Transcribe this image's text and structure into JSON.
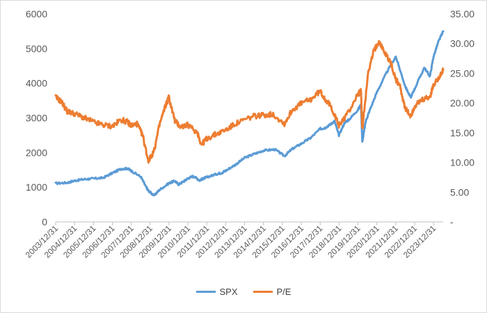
{
  "chart_data": {
    "type": "line",
    "x_tick_labels": [
      "2003/12/31",
      "2004/12/31",
      "2005/12/31",
      "2006/12/31",
      "2007/12/31",
      "2008/12/31",
      "2009/12/31",
      "2010/12/31",
      "2011/12/31",
      "2012/12/31",
      "2013/12/31",
      "2014/12/31",
      "2015/12/31",
      "2016/12/31",
      "2017/12/31",
      "2018/12/31",
      "2019/12/31",
      "2020/12/31",
      "2021/12/31",
      "2022/12/31",
      "2023/12/31"
    ],
    "y_left": {
      "min": 0,
      "max": 6000,
      "ticks": [
        "0",
        "1000",
        "2000",
        "3000",
        "4000",
        "5000",
        "6000"
      ]
    },
    "y_right": {
      "min": 0,
      "max": 35,
      "ticks": [
        "-",
        "5.00",
        "10.00",
        "15.00",
        "20.00",
        "25.00",
        "30.00",
        "35.00"
      ]
    },
    "grid": false,
    "legend_position": "bottom",
    "series": [
      {
        "name": "SPX",
        "axis": "left",
        "color": "#5B9BD5",
        "x": [
          2003.99,
          2004.6,
          2005.0,
          2005.5,
          2006.0,
          2006.5,
          2007.0,
          2007.45,
          2007.8,
          2008.0,
          2008.5,
          2008.8,
          2008.9,
          2009.2,
          2009.5,
          2010.0,
          2010.3,
          2010.5,
          2010.8,
          2011.0,
          2011.3,
          2011.6,
          2011.8,
          2012.0,
          2012.5,
          2012.8,
          2013.0,
          2013.5,
          2014.0,
          2014.5,
          2015.0,
          2015.6,
          2016.1,
          2016.5,
          2017.0,
          2017.5,
          2018.0,
          2018.2,
          2018.5,
          2018.75,
          2018.98,
          2019.3,
          2019.5,
          2019.98,
          2020.15,
          2020.22,
          2020.4,
          2020.6,
          2021.0,
          2021.5,
          2021.99,
          2022.5,
          2022.78,
          2022.99,
          2023.5,
          2023.8,
          2023.99,
          2024.25,
          2024.5
        ],
        "y": [
          1112,
          1130,
          1190,
          1230,
          1250,
          1270,
          1410,
          1530,
          1540,
          1470,
          1300,
          980,
          900,
          760,
          930,
          1120,
          1180,
          1080,
          1180,
          1260,
          1320,
          1200,
          1250,
          1290,
          1380,
          1420,
          1480,
          1650,
          1850,
          1960,
          2060,
          2090,
          1900,
          2100,
          2260,
          2430,
          2690,
          2700,
          2800,
          2910,
          2500,
          2880,
          2940,
          3230,
          3380,
          2300,
          2900,
          3200,
          3750,
          4300,
          4770,
          3900,
          3590,
          3840,
          4450,
          4200,
          4770,
          5200,
          5500
        ]
      },
      {
        "name": "P/E",
        "axis": "right",
        "color": "#ED7D31",
        "x": [
          2003.99,
          2004.3,
          2004.6,
          2005.0,
          2005.5,
          2006.0,
          2006.5,
          2007.0,
          2007.45,
          2007.8,
          2008.0,
          2008.3,
          2008.6,
          2008.9,
          2009.2,
          2009.5,
          2009.8,
          2009.98,
          2010.3,
          2010.6,
          2010.99,
          2011.5,
          2011.7,
          2011.99,
          2012.5,
          2013.0,
          2013.5,
          2014.0,
          2014.5,
          2015.0,
          2015.5,
          2016.1,
          2016.5,
          2017.0,
          2017.5,
          2017.98,
          2018.3,
          2018.6,
          2018.98,
          2019.5,
          2019.98,
          2020.15,
          2020.22,
          2020.5,
          2020.8,
          2021.1,
          2021.4,
          2021.7,
          2021.99,
          2022.2,
          2022.5,
          2022.78,
          2023.0,
          2023.4,
          2023.8,
          2023.99,
          2024.3,
          2024.5
        ],
        "y": [
          21.0,
          20.2,
          18.6,
          18.2,
          17.5,
          16.8,
          16.3,
          16.1,
          17.2,
          16.8,
          16.2,
          16.5,
          14.5,
          10.2,
          12.0,
          16.5,
          19.5,
          21.0,
          17.0,
          16.0,
          16.3,
          15.0,
          13.0,
          14.0,
          14.8,
          15.5,
          16.5,
          17.2,
          17.8,
          18.0,
          18.1,
          16.5,
          18.8,
          20.0,
          20.6,
          22.0,
          20.5,
          19.2,
          16.2,
          18.5,
          21.5,
          22.0,
          15.5,
          24.5,
          28.5,
          30.5,
          28.5,
          27.0,
          24.0,
          23.0,
          19.0,
          17.8,
          19.5,
          20.5,
          21.0,
          23.0,
          24.5,
          25.5
        ]
      }
    ]
  }
}
